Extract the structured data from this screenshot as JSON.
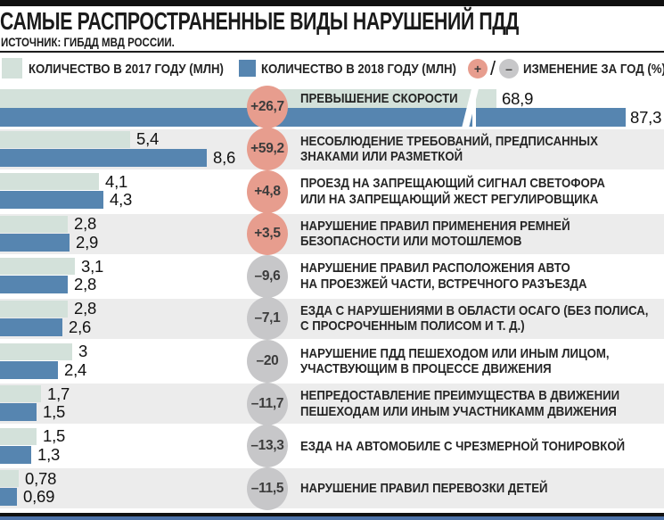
{
  "header": {
    "title": "САМЫЕ РАСПРОСТРАНЕННЫЕ ВИДЫ НАРУШЕНИЙ ПДД",
    "source": "ИСТОЧНИК: ГИБДД МВД РОССИИ."
  },
  "legend": {
    "y2017_label": "КОЛИЧЕСТВО В 2017 ГОДУ (МЛН)",
    "y2018_label": "КОЛИЧЕСТВО В 2018 ГОДУ (МЛН)",
    "plus_sign": "+",
    "minus_sign": "–",
    "slash": "/",
    "change_label": "ИЗМЕНЕНИЕ ЗА ГОД (%)"
  },
  "colors": {
    "bar_2017": "#d3e1da",
    "bar_2018": "#5685b0",
    "badge_positive": "#e79d8e",
    "badge_negative": "#c7c7c9",
    "row_alt_background": "#ececec",
    "accent_black": "#101010",
    "bottom_strip_blue": "#4d72a8"
  },
  "chart_data": {
    "type": "bar",
    "orientation": "horizontal",
    "unit": "million",
    "legend_position": "top",
    "broken_axis_row": 0,
    "title": "САМЫЕ РАСПРОСТРАНЕННЫЕ ВИДЫ НАРУШЕНИЙ ПДД",
    "series": [
      {
        "name": "КОЛИЧЕСТВО В 2017 ГОДУ (МЛН)",
        "values": [
          68.9,
          5.4,
          4.1,
          2.8,
          3.1,
          2.8,
          3.0,
          1.7,
          1.5,
          0.78
        ]
      },
      {
        "name": "КОЛИЧЕСТВО В 2018 ГОДУ (МЛН)",
        "values": [
          87.3,
          8.6,
          4.3,
          2.9,
          2.8,
          2.6,
          2.4,
          1.5,
          1.3,
          0.69
        ]
      }
    ],
    "rows": [
      {
        "label_lines": [
          "ПРЕВЫШЕНИЕ СКОРОСТИ"
        ],
        "v2017": "68,9",
        "v2018": "87,3",
        "change": "+26,7"
      },
      {
        "label_lines": [
          "НЕСОБЛЮДЕНИЕ ТРЕБОВАНИЙ, ПРЕДПИСАННЫХ",
          "ЗНАКАМИ ИЛИ РАЗМЕТКОЙ"
        ],
        "v2017": "5,4",
        "v2018": "8,6",
        "change": "+59,2"
      },
      {
        "label_lines": [
          "ПРОЕЗД НА ЗАПРЕЩАЮЩИЙ СИГНАЛ СВЕТОФОРА",
          "ИЛИ НА ЗАПРЕЩАЮЩИЙ ЖЕСТ РЕГУЛИРОВЩИКА"
        ],
        "v2017": "4,1",
        "v2018": "4,3",
        "change": "+4,8"
      },
      {
        "label_lines": [
          "НАРУШЕНИЕ ПРАВИЛ ПРИМЕНЕНИЯ РЕМНЕЙ",
          "БЕЗОПАСНОСТИ ИЛИ МОТОШЛЕМОВ"
        ],
        "v2017": "2,8",
        "v2018": "2,9",
        "change": "+3,5"
      },
      {
        "label_lines": [
          "НАРУШЕНИЕ ПРАВИЛ РАСПОЛОЖЕНИЯ АВТО",
          "НА ПРОЕЗЖЕЙ ЧАСТИ, ВСТРЕЧНОГО РАЗЪЕЗДА"
        ],
        "v2017": "3,1",
        "v2018": "2,8",
        "change": "–9,6"
      },
      {
        "label_lines": [
          "ЕЗДА С НАРУШЕНИЯМИ В ОБЛАСТИ ОСАГО (БЕЗ ПОЛИСА,",
          "С ПРОСРОЧЕННЫМ ПОЛИСОМ И Т. Д.)"
        ],
        "v2017": "2,8",
        "v2018": "2,6",
        "change": "–7,1"
      },
      {
        "label_lines": [
          "НАРУШЕНИЕ ПДД ПЕШЕХОДОМ ИЛИ ИНЫМ ЛИЦОМ,",
          "УЧАСТВУЮЩИМ В ПРОЦЕССЕ ДВИЖЕНИЯ"
        ],
        "v2017": "3",
        "v2018": "2,4",
        "change": "–20"
      },
      {
        "label_lines": [
          "НЕПРЕДОСТАВЛЕНИЕ ПРЕИМУЩЕСТВА В ДВИЖЕНИИ",
          "ПЕШЕХОДАМ ИЛИ ИНЫМ УЧАСТНИКАММ ДВИЖЕНИЯ"
        ],
        "v2017": "1,7",
        "v2018": "1,5",
        "change": "–11,7"
      },
      {
        "label_lines": [
          "ЕЗДА НА АВТОМОБИЛЕ С ЧРЕЗМЕРНОЙ ТОНИРОВКОЙ"
        ],
        "v2017": "1,5",
        "v2018": "1,3",
        "change": "–13,3"
      },
      {
        "label_lines": [
          "НАРУШЕНИЕ ПРАВИЛ ПЕРЕВОЗКИ ДЕТЕЙ"
        ],
        "v2017": "0,78",
        "v2018": "0,69",
        "change": "–11,5"
      }
    ]
  }
}
